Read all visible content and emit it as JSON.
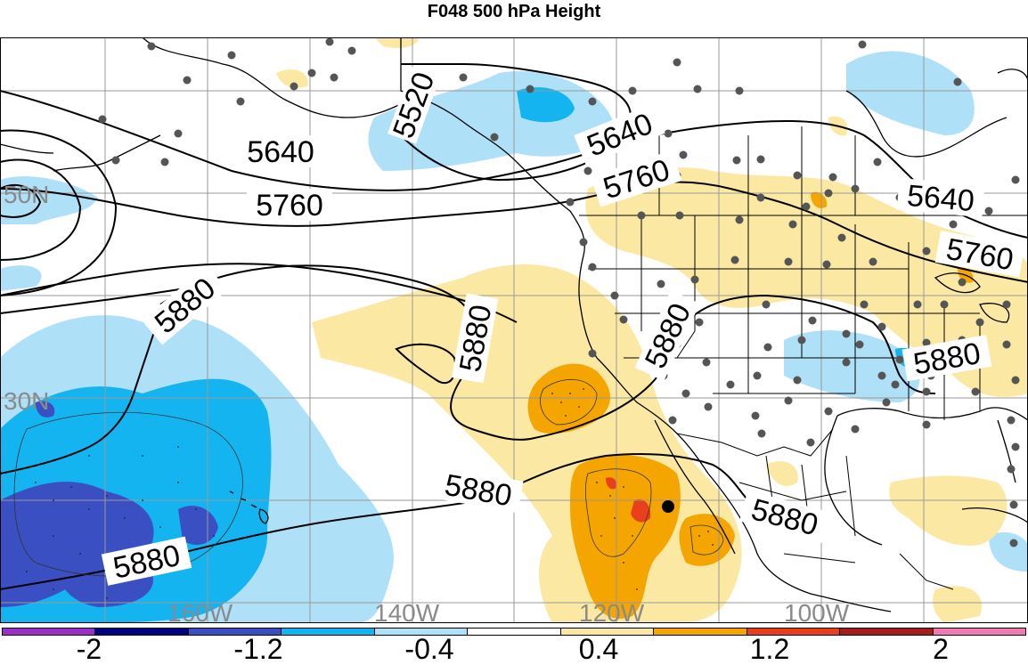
{
  "title": "F048 500 hPa Height",
  "lat_labels": [
    "50N",
    "30N"
  ],
  "lon_labels": [
    "160W",
    "140W",
    "120W",
    "100W"
  ],
  "contour_labels": [
    "5520",
    "5640",
    "5640",
    "5640",
    "5760",
    "5760",
    "5760",
    "5880",
    "5880",
    "5880",
    "5880",
    "5880",
    "5880",
    "5880"
  ],
  "colorbar": {
    "tick_labels": [
      "-2",
      "-1.2",
      "-0.4",
      "0.4",
      "1.2",
      "2"
    ],
    "colors": [
      "#9b30c8",
      "#000080",
      "#3a4fc2",
      "#14b4f0",
      "#aee0f8",
      "#ffffff",
      "#fbe9a3",
      "#f5a500",
      "#e8401c",
      "#a81c1c",
      "#f07ab4"
    ]
  },
  "colors": {
    "neg_light": "#aee0f8",
    "neg_mid": "#14b4f0",
    "neg_dark": "#3a4fc2",
    "pos_light": "#fbe9a3",
    "pos_mid": "#f5a500",
    "pos_dark": "#e8401c",
    "station_dot": "#555555"
  }
}
